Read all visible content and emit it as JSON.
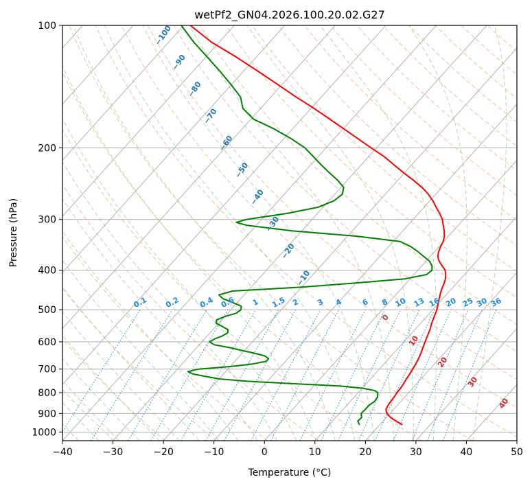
{
  "chart_data": {
    "type": "line",
    "title": "wetPf2_GN04.2026.100.20.02.G27",
    "xlabel": "Temperature (°C)",
    "ylabel": "Pressure (hPa)",
    "xlim": [
      -40,
      50
    ],
    "ylim": [
      1050,
      100
    ],
    "y_scale": "log",
    "x_ticks": [
      -40,
      -30,
      -20,
      -10,
      0,
      10,
      20,
      30,
      40,
      50
    ],
    "x_tick_labels": [
      "−40",
      "−30",
      "−20",
      "−10",
      "0",
      "10",
      "20",
      "30",
      "40",
      "50"
    ],
    "y_ticks": [
      100,
      200,
      300,
      400,
      500,
      600,
      700,
      800,
      900,
      1000
    ],
    "y_tick_labels": [
      "100",
      "200",
      "300",
      "400",
      "500",
      "600",
      "700",
      "800",
      "900",
      "1000"
    ],
    "grid": true,
    "series": [
      {
        "color": "#ff0000",
        "p": [
          960,
          940,
          920,
          900,
          880,
          860,
          840,
          820,
          800,
          780,
          760,
          740,
          720,
          700,
          680,
          660,
          640,
          620,
          600,
          580,
          560,
          540,
          520,
          500,
          480,
          470,
          460,
          450,
          440,
          430,
          420,
          410,
          400,
          390,
          380,
          370,
          360,
          350,
          340,
          330,
          320,
          310,
          300,
          290,
          280,
          270,
          260,
          250,
          240,
          230,
          220,
          210,
          200,
          190,
          180,
          170,
          160,
          150,
          140,
          130,
          120,
          110,
          100
        ],
        "t": [
          24.5,
          22.6,
          20.8,
          19.4,
          18.5,
          18.2,
          18.0,
          17.9,
          17.7,
          17.6,
          17.4,
          17.1,
          16.9,
          16.6,
          16.3,
          15.9,
          15.4,
          14.8,
          14.2,
          13.6,
          13.0,
          12.2,
          11.5,
          10.8,
          9.8,
          9.3,
          8.8,
          8.3,
          7.9,
          7.5,
          7.0,
          6.3,
          5.4,
          4.0,
          2.6,
          1.5,
          0.8,
          0.3,
          -0.1,
          -0.8,
          -1.8,
          -3.0,
          -4.2,
          -5.8,
          -7.6,
          -9.4,
          -11.5,
          -14.0,
          -17.0,
          -20.3,
          -23.6,
          -27.0,
          -31.1,
          -35.3,
          -39.7,
          -44.4,
          -49.4,
          -55.0,
          -60.7,
          -66.9,
          -73.7,
          -81.5,
          -88.7
        ]
      },
      {
        "color": "#008000",
        "p": [
          960,
          940,
          920,
          900,
          880,
          860,
          840,
          820,
          800,
          790,
          780,
          770,
          760,
          750,
          740,
          730,
          720,
          710,
          700,
          690,
          680,
          670,
          660,
          650,
          640,
          630,
          620,
          610,
          600,
          590,
          580,
          570,
          560,
          550,
          540,
          530,
          520,
          510,
          500,
          490,
          480,
          470,
          460,
          450,
          440,
          430,
          420,
          410,
          400,
          390,
          380,
          370,
          360,
          350,
          340,
          330,
          320,
          310,
          305,
          300,
          290,
          280,
          270,
          260,
          250,
          240,
          230,
          220,
          210,
          200,
          190,
          180,
          170,
          160,
          150,
          140,
          130,
          120,
          110,
          100
        ],
        "t": [
          16.0,
          15.0,
          15.1,
          14.3,
          14.4,
          14.4,
          14.8,
          14.6,
          13.9,
          12.8,
          10.0,
          5.0,
          -5.0,
          -14.0,
          -20.0,
          -23.0,
          -26.0,
          -27.5,
          -25.8,
          -20.0,
          -16.0,
          -13.8,
          -13.8,
          -15.0,
          -17.5,
          -20.5,
          -23.5,
          -27.0,
          -28.5,
          -28.0,
          -27.0,
          -26.5,
          -27.0,
          -28.7,
          -30.5,
          -31.0,
          -30.0,
          -28.3,
          -28.0,
          -28.6,
          -31.0,
          -33.5,
          -35.0,
          -33.0,
          -20.0,
          -10.0,
          -1.0,
          2.5,
          2.8,
          2.0,
          0.7,
          -1.3,
          -3.3,
          -5.6,
          -8.6,
          -18.0,
          -32.0,
          -42.0,
          -44.5,
          -43.0,
          -36.0,
          -31.0,
          -29.0,
          -28.5,
          -29.5,
          -32.0,
          -35.0,
          -38.0,
          -41.0,
          -44.2,
          -48.5,
          -53.5,
          -59.5,
          -63.5,
          -66.0,
          -70.0,
          -74.5,
          -79.5,
          -85.0,
          -90.5
        ]
      }
    ],
    "dry_adiabat_labels": [
      "−100",
      "−90",
      "−80",
      "−70",
      "−60",
      "−50",
      "−40",
      "−30",
      "−20",
      "−10",
      "0",
      "10",
      "20",
      "30",
      "40"
    ],
    "mixing_ratio_labels": [
      "0.1",
      "0.2",
      "0.4",
      "0.6",
      "1",
      "1.5",
      "2",
      "3",
      "4",
      "6",
      "8",
      "10",
      "13",
      "16",
      "20",
      "25",
      "30",
      "36"
    ]
  }
}
